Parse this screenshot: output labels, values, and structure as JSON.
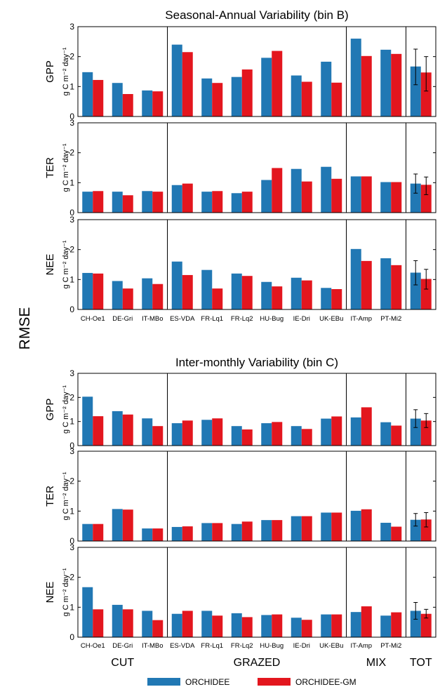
{
  "side_label": "RMSE",
  "unit_label": "g C m⁻² day⁻¹",
  "colors": {
    "ORCHIDEE": "#2178b4",
    "ORCHIDEE-GM": "#e3161e"
  },
  "legend": [
    {
      "name": "ORCHIDEE",
      "color": "#2178b4"
    },
    {
      "name": "ORCHIDEE-GM",
      "color": "#e3161e"
    }
  ],
  "site_groups": [
    {
      "label": "CUT",
      "sites": 3
    },
    {
      "label": "GRAZED",
      "sites": 6
    },
    {
      "label": "MIX",
      "sites": 2
    },
    {
      "label": "TOT",
      "sites": 1
    }
  ],
  "chart_data": [
    {
      "type": "bar",
      "title": "Seasonal-Annual Variability (bin B)",
      "categories": [
        "CH-Oe1",
        "DE-Gri",
        "IT-MBo",
        "ES-VDA",
        "FR-Lq1",
        "FR-Lq2",
        "HU-Bug",
        "IE-Dri",
        "UK-EBu",
        "IT-Amp",
        "PT-Mi2",
        "TOT"
      ],
      "yticks": [
        "0",
        "1",
        "2",
        "3"
      ],
      "ylim": [
        0,
        3
      ],
      "panels": [
        {
          "ylabel": "GPP",
          "series": [
            {
              "name": "ORCHIDEE",
              "values": [
                1.48,
                1.12,
                0.87,
                2.4,
                1.27,
                1.32,
                1.96,
                1.37,
                1.83,
                2.6,
                2.23,
                1.67
              ]
            },
            {
              "name": "ORCHIDEE-GM",
              "values": [
                1.22,
                0.75,
                0.84,
                2.15,
                1.12,
                1.57,
                2.19,
                1.16,
                1.13,
                2.02,
                2.09,
                1.47
              ]
            }
          ],
          "error_bars": [
            {
              "name": "ORCHIDEE",
              "low": 1.06,
              "high": 2.25
            },
            {
              "name": "ORCHIDEE-GM",
              "low": 0.85,
              "high": 2.0
            }
          ]
        },
        {
          "ylabel": "TER",
          "series": [
            {
              "name": "ORCHIDEE",
              "values": [
                0.7,
                0.7,
                0.72,
                0.92,
                0.7,
                0.65,
                1.09,
                1.46,
                1.53,
                1.21,
                1.02,
                0.97
              ]
            },
            {
              "name": "ORCHIDEE-GM",
              "values": [
                0.72,
                0.58,
                0.7,
                0.97,
                0.72,
                0.7,
                1.49,
                1.04,
                1.13,
                1.21,
                1.02,
                0.93
              ]
            }
          ],
          "error_bars": [
            {
              "name": "ORCHIDEE",
              "low": 0.65,
              "high": 1.29
            },
            {
              "name": "ORCHIDEE-GM",
              "low": 0.6,
              "high": 1.19
            }
          ]
        },
        {
          "ylabel": "NEE",
          "series": [
            {
              "name": "ORCHIDEE",
              "values": [
                1.22,
                0.95,
                1.04,
                1.6,
                1.32,
                1.2,
                0.92,
                1.06,
                0.72,
                2.02,
                1.71,
                1.23
              ]
            },
            {
              "name": "ORCHIDEE-GM",
              "values": [
                1.2,
                0.7,
                0.85,
                1.15,
                0.7,
                1.12,
                0.77,
                0.97,
                0.68,
                1.62,
                1.48,
                1.02
              ]
            }
          ],
          "error_bars": [
            {
              "name": "ORCHIDEE",
              "low": 0.82,
              "high": 1.63
            },
            {
              "name": "ORCHIDEE-GM",
              "low": 0.68,
              "high": 1.34
            }
          ]
        }
      ]
    },
    {
      "type": "bar",
      "title": "Inter-monthly Variability (bin C)",
      "categories": [
        "CH-Oe1",
        "DE-Gri",
        "IT-MBo",
        "ES-VDA",
        "FR-Lq1",
        "FR-Lq2",
        "HU-Bug",
        "IE-Dri",
        "UK-EBu",
        "IT-Amp",
        "PT-Mi2",
        "TOT"
      ],
      "yticks": [
        "0",
        "1",
        "2",
        "3"
      ],
      "ylim": [
        0,
        3
      ],
      "panels": [
        {
          "ylabel": "GPP",
          "series": [
            {
              "name": "ORCHIDEE",
              "values": [
                2.03,
                1.43,
                1.13,
                0.93,
                1.07,
                0.81,
                0.93,
                0.81,
                1.12,
                1.17,
                0.97,
                1.12
              ]
            },
            {
              "name": "ORCHIDEE-GM",
              "values": [
                1.22,
                1.29,
                0.81,
                1.04,
                1.13,
                0.67,
                0.98,
                0.69,
                1.21,
                1.59,
                0.83,
                1.04
              ]
            }
          ],
          "error_bars": [
            {
              "name": "ORCHIDEE",
              "low": 0.75,
              "high": 1.49
            },
            {
              "name": "ORCHIDEE-GM",
              "low": 0.75,
              "high": 1.33
            }
          ]
        },
        {
          "ylabel": "TER",
          "series": [
            {
              "name": "ORCHIDEE",
              "values": [
                0.57,
                1.07,
                0.42,
                0.47,
                0.6,
                0.57,
                0.7,
                0.83,
                0.95,
                1.01,
                0.61,
                0.71
              ]
            },
            {
              "name": "ORCHIDEE-GM",
              "values": [
                0.57,
                1.05,
                0.42,
                0.49,
                0.6,
                0.65,
                0.7,
                0.83,
                0.95,
                1.06,
                0.48,
                0.72
              ]
            }
          ],
          "error_bars": [
            {
              "name": "ORCHIDEE",
              "low": 0.5,
              "high": 0.92
            },
            {
              "name": "ORCHIDEE-GM",
              "low": 0.47,
              "high": 0.95
            }
          ]
        },
        {
          "ylabel": "NEE",
          "series": [
            {
              "name": "ORCHIDEE",
              "values": [
                1.67,
                1.08,
                0.88,
                0.78,
                0.88,
                0.8,
                0.74,
                0.65,
                0.76,
                0.84,
                0.72,
                0.88
              ]
            },
            {
              "name": "ORCHIDEE-GM",
              "values": [
                0.93,
                0.93,
                0.57,
                0.88,
                0.72,
                0.67,
                0.76,
                0.58,
                0.76,
                1.03,
                0.83,
                0.78
              ]
            }
          ],
          "error_bars": [
            {
              "name": "ORCHIDEE",
              "low": 0.6,
              "high": 1.16
            },
            {
              "name": "ORCHIDEE-GM",
              "low": 0.64,
              "high": 0.93
            }
          ]
        }
      ]
    }
  ]
}
